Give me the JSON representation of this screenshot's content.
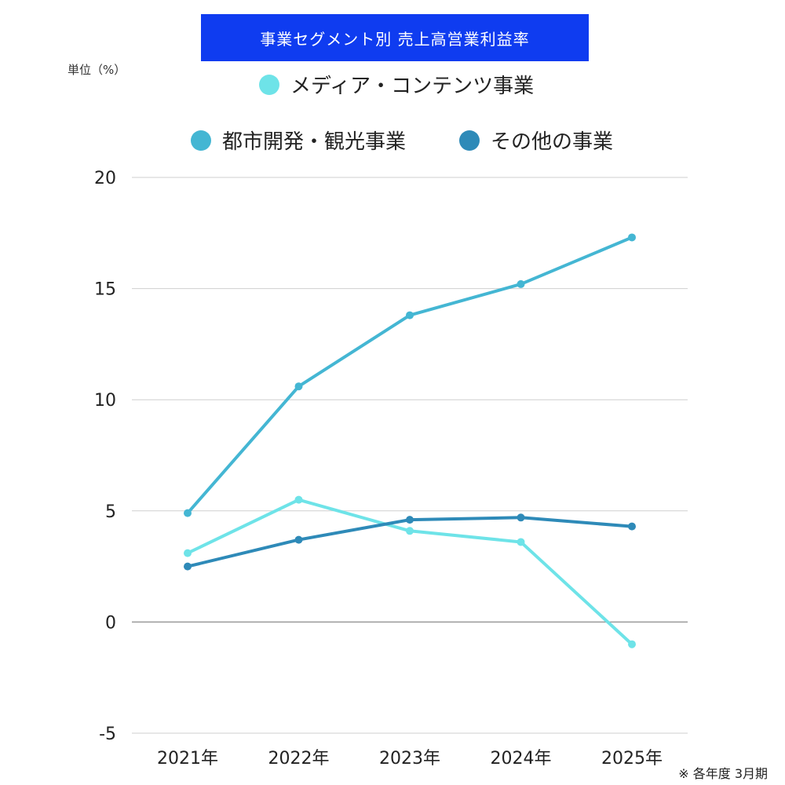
{
  "chart_data": {
    "type": "line",
    "title": "事業セグメント別 売上高営業利益率",
    "unit_label": "単位（%）",
    "note": "※ 各年度 3月期",
    "categories": [
      "2021年",
      "2022年",
      "2023年",
      "2024年",
      "2025年"
    ],
    "ylim": [
      -5,
      20
    ],
    "yticks": [
      20,
      15,
      10,
      5,
      0,
      -5
    ],
    "grid": true,
    "legend_position": "top",
    "series": [
      {
        "name": "メディア・コンテンツ事業",
        "color": "#6ee3e8",
        "values": [
          3.1,
          5.5,
          4.1,
          3.6,
          -1.0
        ]
      },
      {
        "name": "都市開発・観光事業",
        "color": "#44b6d3",
        "values": [
          4.9,
          10.6,
          13.8,
          15.2,
          17.3
        ]
      },
      {
        "name": "その他の事業",
        "color": "#2e8ab8",
        "values": [
          2.5,
          3.7,
          4.6,
          4.7,
          4.3
        ]
      }
    ]
  }
}
